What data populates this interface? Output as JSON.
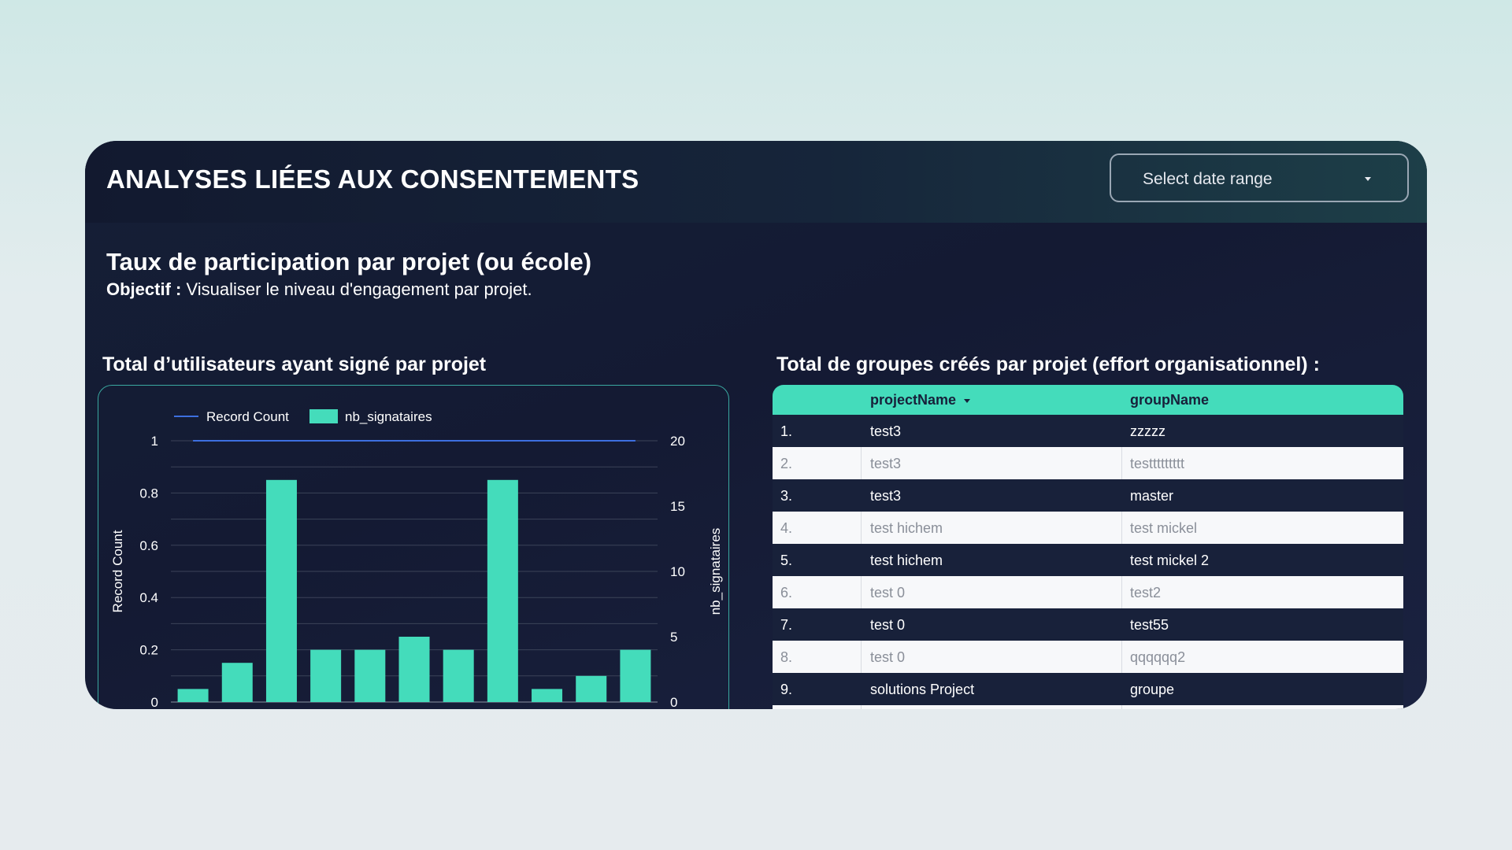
{
  "header": {
    "title": "ANALYSES LIÉES AUX CONSENTEMENTS",
    "date_select": {
      "label": "Select date range"
    }
  },
  "section": {
    "title": "Taux de participation par projet (ou école)",
    "objective_label": "Objectif :",
    "objective_text": " Visualiser le niveau d'engagement par projet."
  },
  "chart_title": "Total d’utilisateurs ayant signé par projet",
  "table_title": "Total de groupes créés par projet (effort organisationnel) :",
  "colors": {
    "accent": "#44dcbb",
    "line": "#3d6fe0",
    "card": "#151d36"
  },
  "chart_data": {
    "type": "bar",
    "legend": [
      "Record Count",
      "nb_signataires"
    ],
    "legend_position": "top-left",
    "grid": true,
    "ylabel": "Record Count",
    "y2label": "nb_signataires",
    "ylim": [
      0,
      1
    ],
    "y2lim": [
      0,
      20
    ],
    "y_ticks": [
      "0",
      "0.2",
      "0.4",
      "0.6",
      "0.8",
      "1"
    ],
    "y2_ticks": [
      "0",
      "5",
      "10",
      "15",
      "20"
    ],
    "series": [
      {
        "name": "nb_signataires",
        "axis": "right",
        "kind": "bar",
        "values": [
          1,
          3,
          17,
          4,
          4,
          5,
          4,
          17,
          1,
          2,
          4
        ]
      },
      {
        "name": "Record Count",
        "axis": "left",
        "kind": "line",
        "values": [
          1,
          1,
          1,
          1,
          1,
          1,
          1,
          1,
          1,
          1,
          1
        ]
      }
    ]
  },
  "table": {
    "columns": [
      "projectName",
      "groupName"
    ],
    "rows": [
      {
        "idx": "1.",
        "project": "test3",
        "group": "zzzzz"
      },
      {
        "idx": "2.",
        "project": "test3",
        "group": "testtttttttt"
      },
      {
        "idx": "3.",
        "project": "test3",
        "group": "master"
      },
      {
        "idx": "4.",
        "project": "test hichem",
        "group": "test mickel"
      },
      {
        "idx": "5.",
        "project": "test hichem",
        "group": "test mickel 2"
      },
      {
        "idx": "6.",
        "project": "test 0",
        "group": "test2"
      },
      {
        "idx": "7.",
        "project": "test 0",
        "group": "test55"
      },
      {
        "idx": "8.",
        "project": "test 0",
        "group": "qqqqqq2"
      },
      {
        "idx": "9.",
        "project": "solutions Project",
        "group": "groupe"
      }
    ]
  }
}
